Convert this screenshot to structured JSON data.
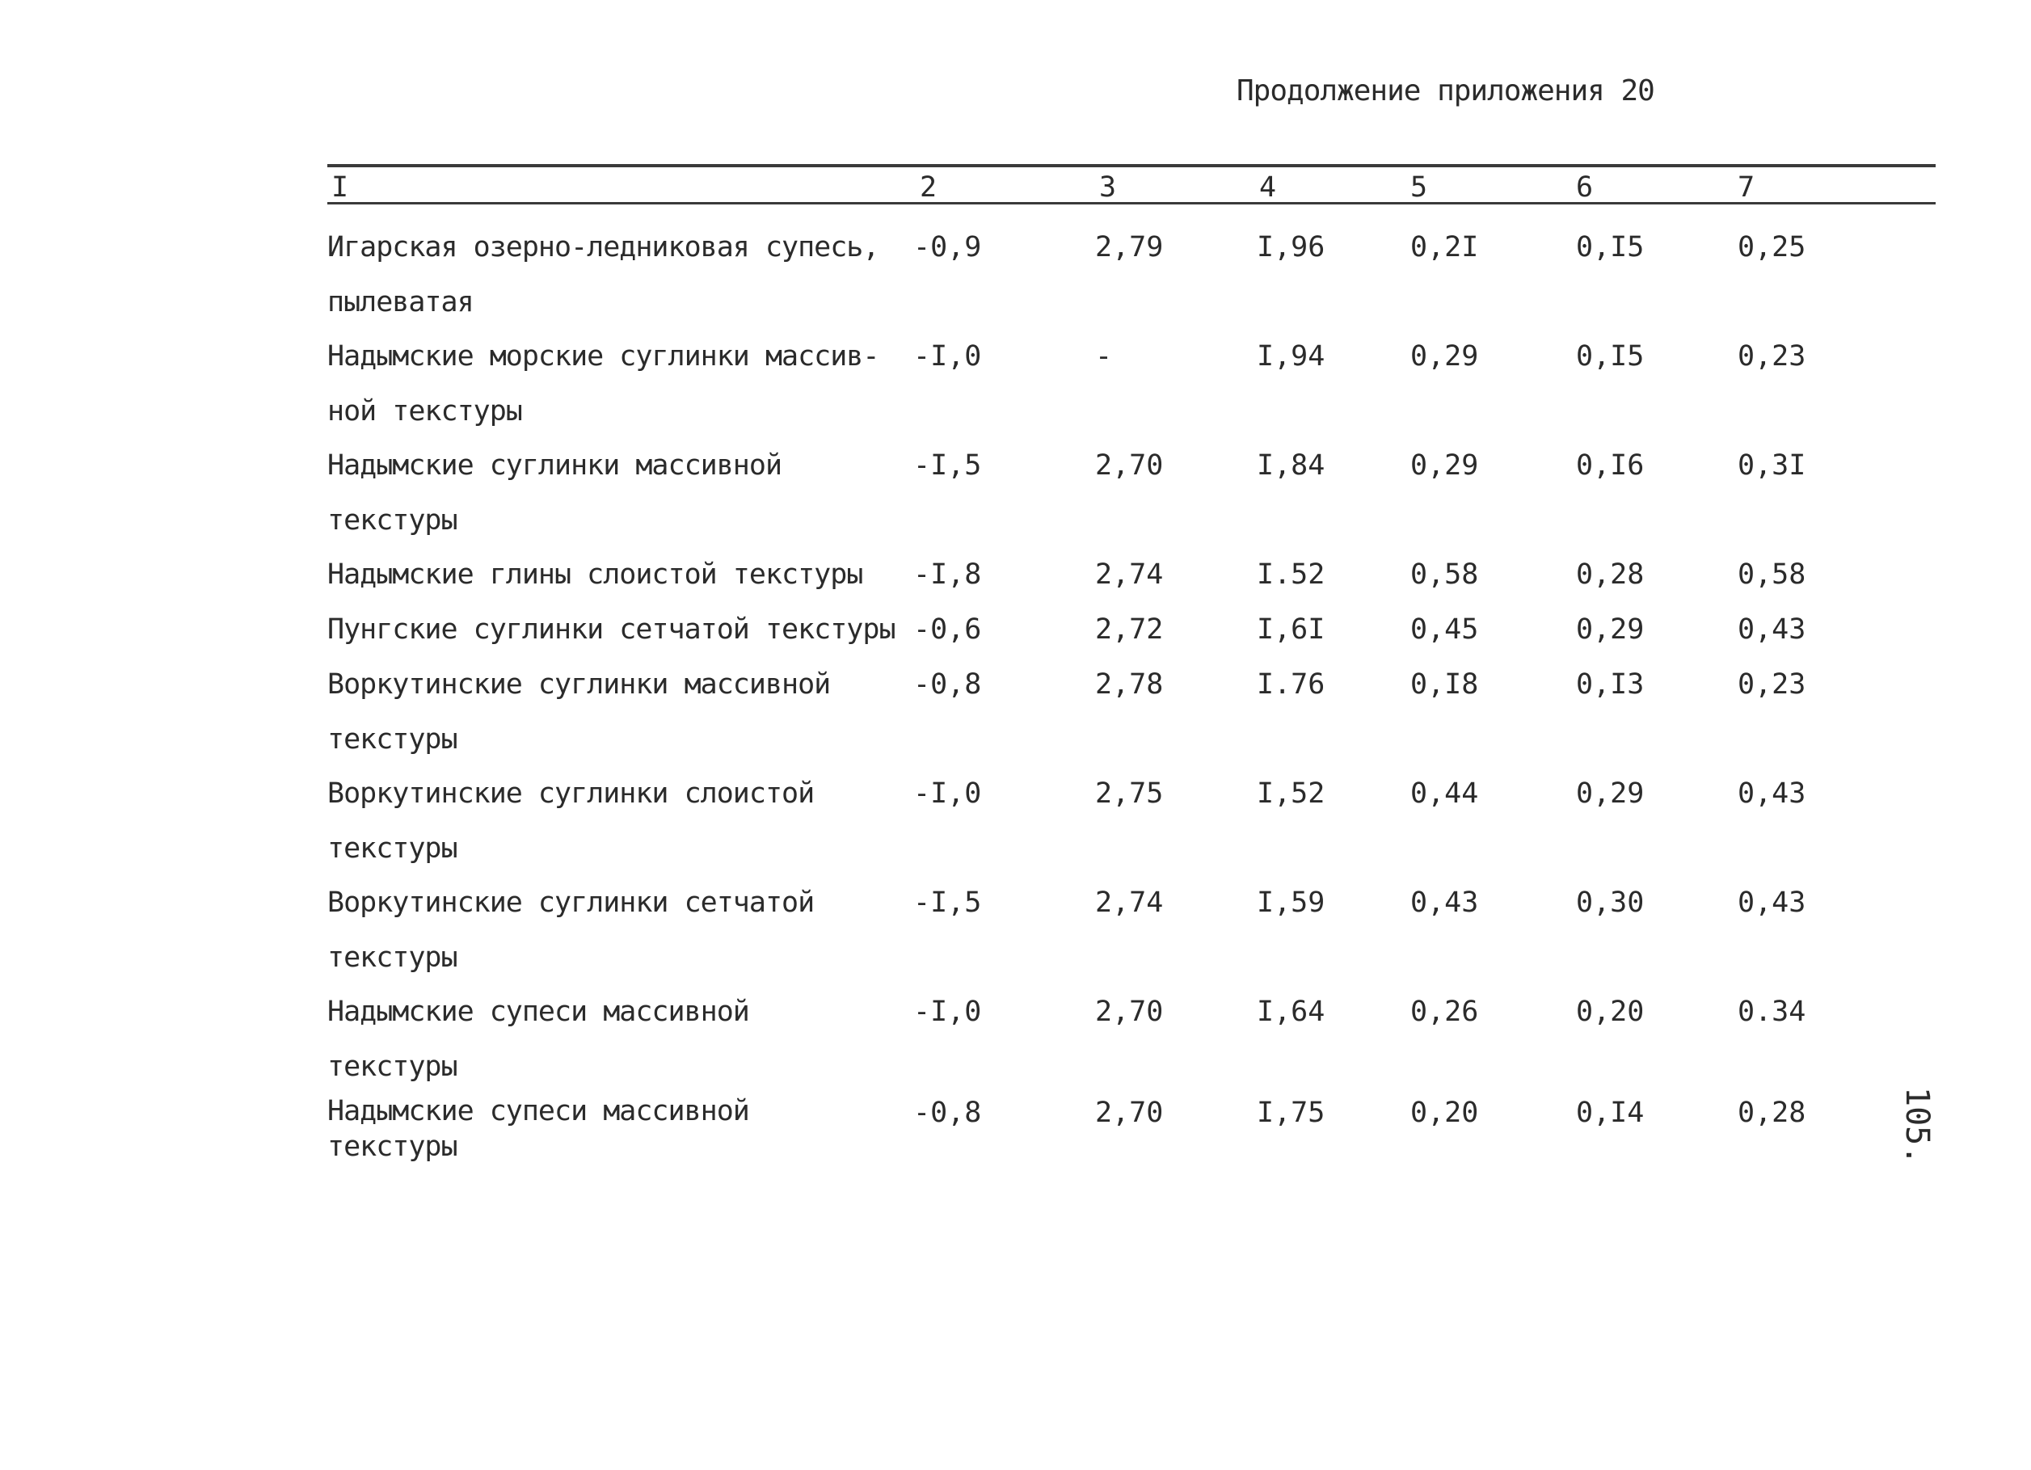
{
  "heading": "Продолжение приложения 20",
  "columns": [
    "I",
    "2",
    "3",
    "4",
    "5",
    "6",
    "7"
  ],
  "rows": [
    {
      "name": [
        "Игарская озерно-ледниковая супесь,",
        "пылеватая"
      ],
      "c2": "-0,9",
      "c3": "2,79",
      "c4": "I,96",
      "c5": "0,2I",
      "c6": "0,I5",
      "c7": "0,25"
    },
    {
      "name": [
        "Надымские морские суглинки массив-",
        "ной текстуры"
      ],
      "c2": "-I,0",
      "c3": "-",
      "c4": "I,94",
      "c5": "0,29",
      "c6": "0,I5",
      "c7": "0,23"
    },
    {
      "name": [
        "Надымские суглинки массивной",
        "текстуры"
      ],
      "c2": "-I,5",
      "c3": "2,70",
      "c4": "I,84",
      "c5": "0,29",
      "c6": "0,I6",
      "c7": "0,3I"
    },
    {
      "name": [
        "Надымские глины слоистой текстуры"
      ],
      "c2": "-I,8",
      "c3": "2,74",
      "c4": "I.52",
      "c5": "0,58",
      "c6": "0,28",
      "c7": "0,58"
    },
    {
      "name": [
        "Пунгские суглинки сетчатой текстуры"
      ],
      "c2": "-0,6",
      "c3": "2,72",
      "c4": "I,6I",
      "c5": "0,45",
      "c6": "0,29",
      "c7": "0,43"
    },
    {
      "name": [
        "Воркутинские суглинки массивной",
        "текстуры"
      ],
      "c2": "-0,8",
      "c3": "2,78",
      "c4": "I.76",
      "c5": "0,I8",
      "c6": "0,I3",
      "c7": "0,23"
    },
    {
      "name": [
        "Воркутинские суглинки слоистой",
        "текстуры"
      ],
      "c2": "-I,0",
      "c3": "2,75",
      "c4": "I,52",
      "c5": "0,44",
      "c6": "0,29",
      "c7": "0,43"
    },
    {
      "name": [
        "Воркутинские суглинки сетчатой",
        "текстуры"
      ],
      "c2": "-I,5",
      "c3": "2,74",
      "c4": "I,59",
      "c5": "0,43",
      "c6": "0,30",
      "c7": "0,43"
    },
    {
      "name": [
        "Надымские супеси массивной",
        "текстуры"
      ],
      "c2": "-I,0",
      "c3": "2,70",
      "c4": "I,64",
      "c5": "0,26",
      "c6": "0,20",
      "c7": "0.34"
    },
    {
      "name": [
        "Надымские супеси массивной",
        "текстуры"
      ],
      "c2": "-0,8",
      "c3": "2,70",
      "c4": "I,75",
      "c5": "0,20",
      "c6": "0,I4",
      "c7": "0,28"
    }
  ],
  "page_number": "105."
}
